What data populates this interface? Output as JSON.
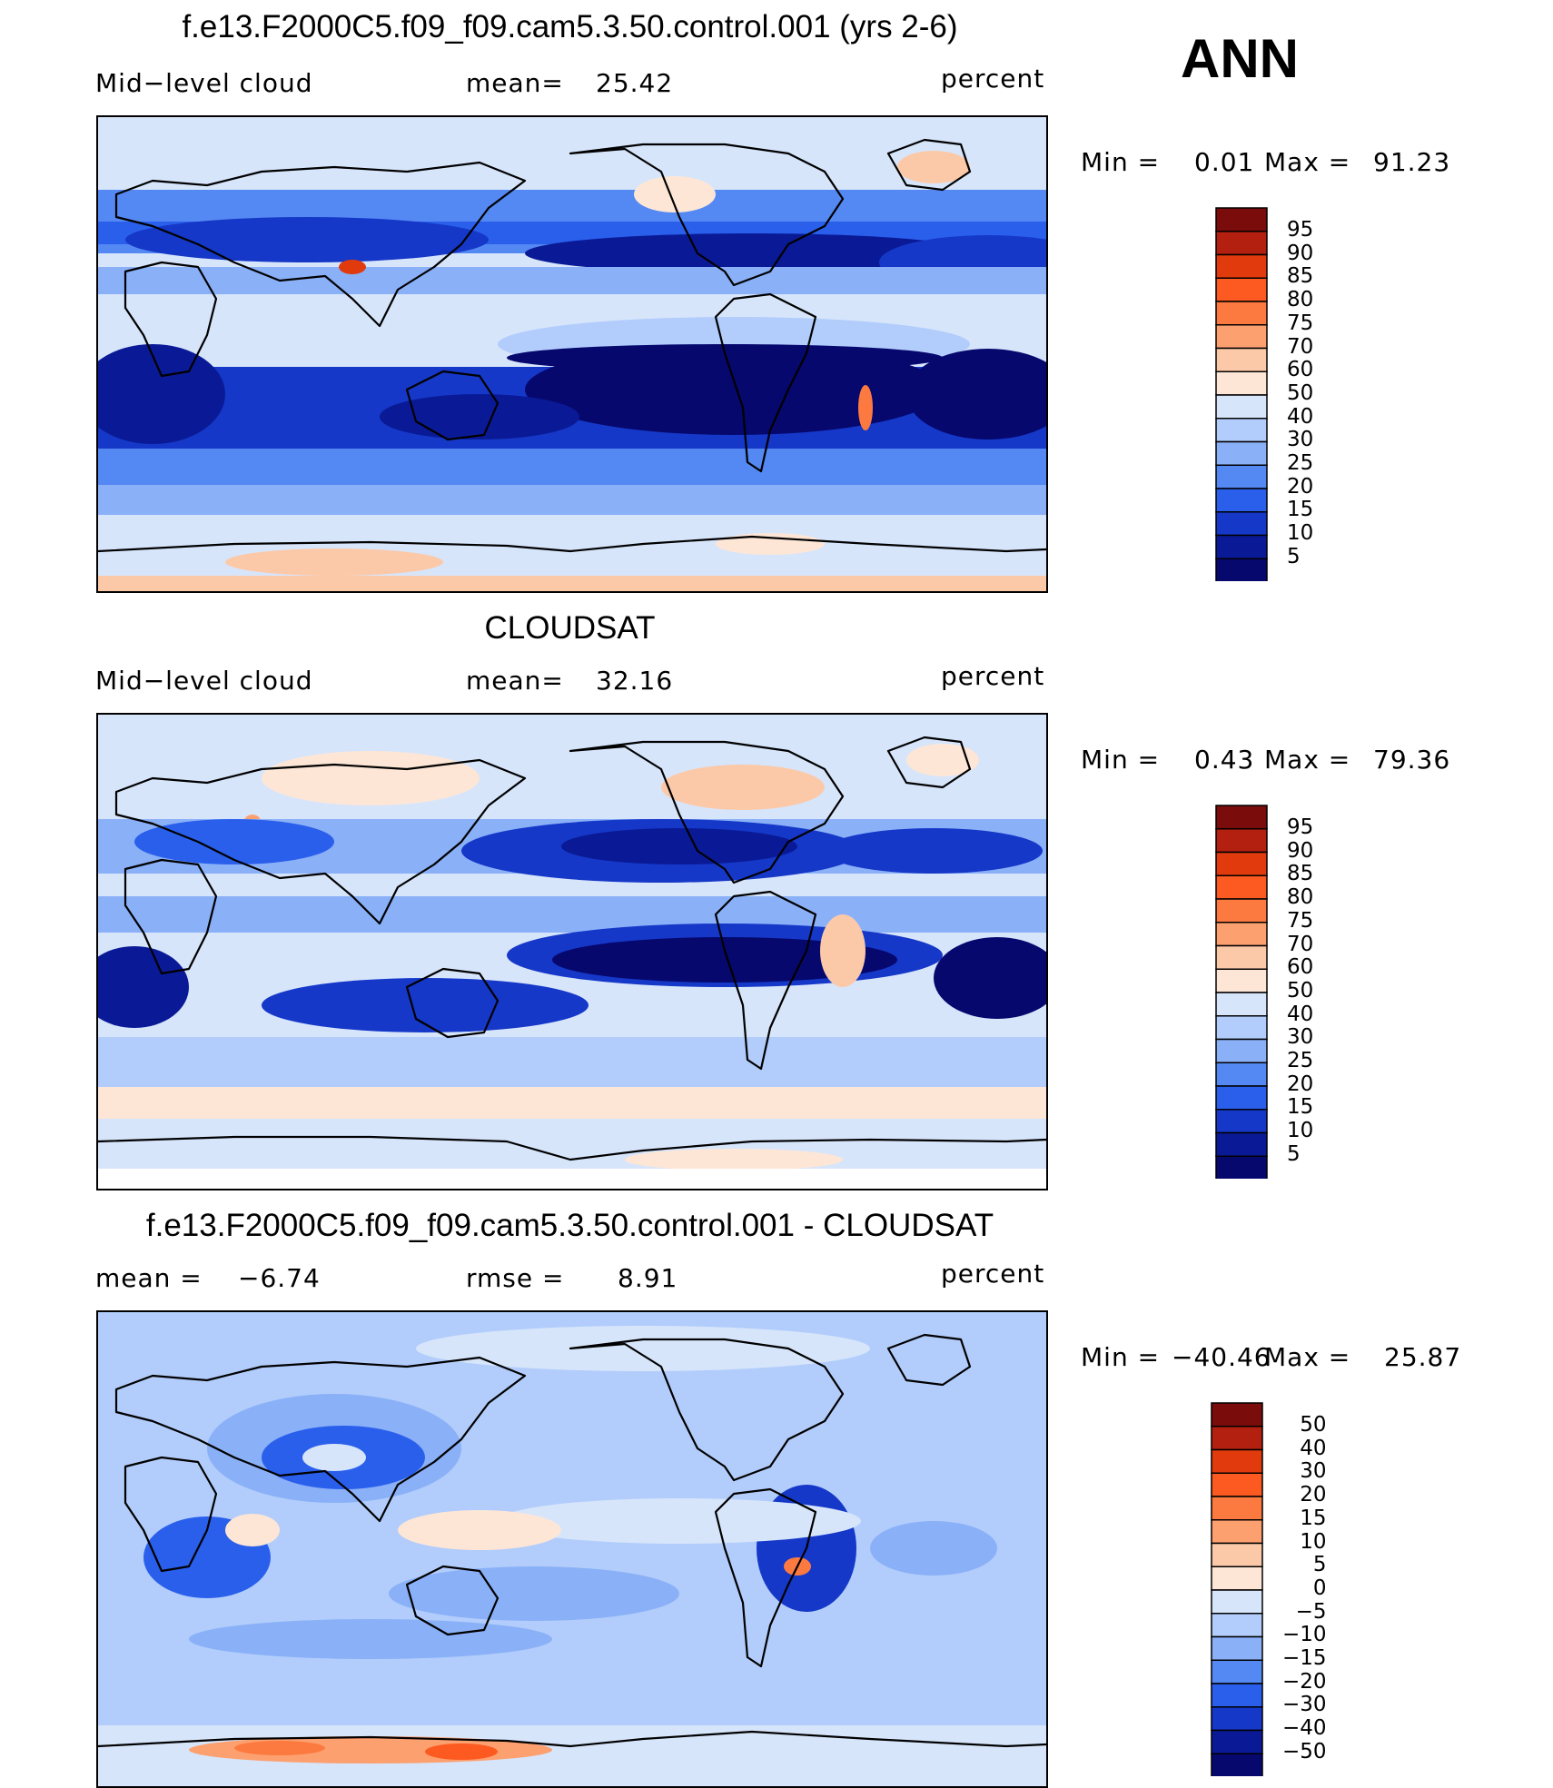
{
  "season": "ANN",
  "units": "percent",
  "panels": [
    {
      "title": "f.e13.F2000C5.f09_f09.cam5.3.50.control.001 (yrs 2-6)",
      "left_label": "Mid−level cloud",
      "stat_label": "mean=",
      "stat_value": "25.42",
      "units": "percent",
      "min_label": "Min =",
      "min_value": "0.01",
      "max_label": "Max =",
      "max_value": "91.23",
      "colorbar_labels": [
        "95",
        "90",
        "85",
        "80",
        "75",
        "70",
        "60",
        "50",
        "40",
        "30",
        "25",
        "20",
        "15",
        "10",
        "5"
      ]
    },
    {
      "title": "CLOUDSAT",
      "left_label": "Mid−level cloud",
      "stat_label": "mean=",
      "stat_value": "32.16",
      "units": "percent",
      "min_label": "Min =",
      "min_value": "0.43",
      "max_label": "Max =",
      "max_value": "79.36",
      "colorbar_labels": [
        "95",
        "90",
        "85",
        "80",
        "75",
        "70",
        "60",
        "50",
        "40",
        "30",
        "25",
        "20",
        "15",
        "10",
        "5"
      ]
    },
    {
      "title": "f.e13.F2000C5.f09_f09.cam5.3.50.control.001 - CLOUDSAT",
      "left_label": "mean =",
      "left_value": "−6.74",
      "stat_label": "rmse =",
      "stat_value": "8.91",
      "units": "percent",
      "min_label": "Min =",
      "min_value": "−40.46",
      "max_label": "Max =",
      "max_value": "25.87",
      "colorbar_labels": [
        "50",
        "40",
        "30",
        "20",
        "15",
        "10",
        "5",
        "0",
        "−5",
        "−10",
        "−15",
        "−20",
        "−30",
        "−40",
        "−50"
      ]
    }
  ],
  "colors": {
    "colorbar": [
      "#7a0c0c",
      "#b3200f",
      "#e03a0d",
      "#fc5a20",
      "#fc7a40",
      "#fca070",
      "#fcc9a8",
      "#fde6d6",
      "#d7e5fb",
      "#b2cdfb",
      "#8ab0f7",
      "#5488f2",
      "#2a5fec",
      "#1538c8",
      "#0a1a96",
      "#06086e"
    ]
  },
  "chart_data": [
    {
      "type": "heatmap",
      "title": "f.e13.F2000C5.f09_f09.cam5.3.50.control.001 (yrs 2-6)",
      "variable": "Mid-level cloud",
      "units": "percent",
      "mean": 25.42,
      "min": 0.01,
      "max": 91.23,
      "contour_levels": [
        5,
        10,
        15,
        20,
        25,
        30,
        40,
        50,
        60,
        70,
        75,
        80,
        85,
        90,
        95
      ]
    },
    {
      "type": "heatmap",
      "title": "CLOUDSAT",
      "variable": "Mid-level cloud",
      "units": "percent",
      "mean": 32.16,
      "min": 0.43,
      "max": 79.36,
      "contour_levels": [
        5,
        10,
        15,
        20,
        25,
        30,
        40,
        50,
        60,
        70,
        75,
        80,
        85,
        90,
        95
      ]
    },
    {
      "type": "heatmap",
      "title": "f.e13.F2000C5.f09_f09.cam5.3.50.control.001 - CLOUDSAT",
      "units": "percent",
      "mean": -6.74,
      "rmse": 8.91,
      "min": -40.46,
      "max": 25.87,
      "contour_levels": [
        -50,
        -40,
        -30,
        -20,
        -15,
        -10,
        -5,
        0,
        5,
        10,
        15,
        20,
        30,
        40,
        50
      ]
    }
  ]
}
